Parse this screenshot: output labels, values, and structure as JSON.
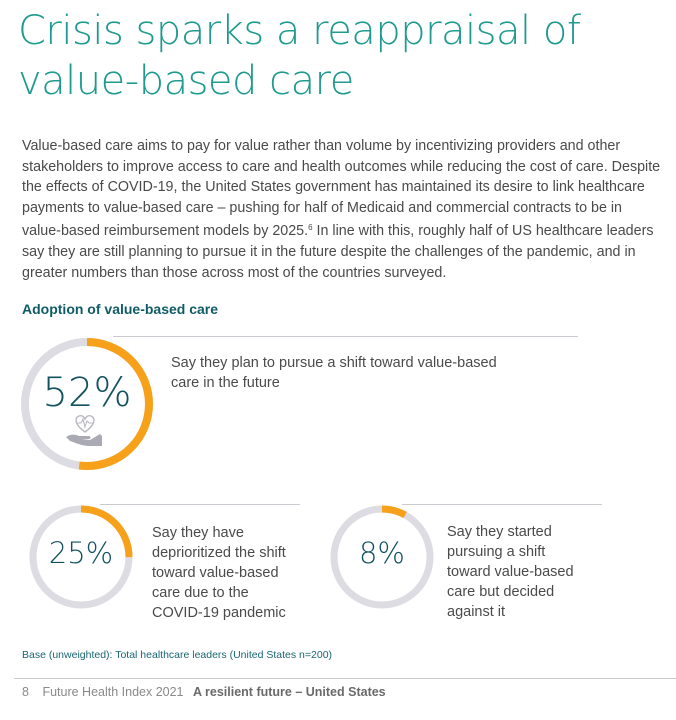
{
  "header": {
    "title_line1": "Crisis sparks a reappraisal of",
    "title_line2": "value-based care"
  },
  "intro": {
    "text_before_sup": "Value-based care aims to pay for value rather than volume by incentivizing providers and other stakeholders to improve access to care and health outcomes while reducing the cost of care. Despite the effects of COVID-19, the United States government has maintained its desire to link healthcare payments to value-based care – pushing for half of Medicaid and commercial contracts to be in value-based reimbursement models by 2025.",
    "footnote_ref": "6",
    "text_after_sup": " In line with this, roughly half of US healthcare leaders say they are still planning to pursue it in the future despite the challenges of the pandemic, and in greater numbers than those across most of the countries surveyed."
  },
  "section": {
    "title": "Adoption of value-based care"
  },
  "colors": {
    "accent": "#f7a11a",
    "track": "#dcdce2",
    "title_teal": "#1f9a8e",
    "number_teal": "#12525e"
  },
  "chart_data": {
    "type": "pie",
    "title": "Adoption of value-based care",
    "unit": "%",
    "series": [
      {
        "name": "plan-to-pursue",
        "label": "52%",
        "value": 52,
        "description": "Say they plan to pursue a shift toward value-based care in the future",
        "icon": "heart-in-hand-icon"
      },
      {
        "name": "deprioritized",
        "label": "25%",
        "value": 25,
        "description": "Say they have deprioritized the shift toward value-based care due to the COVID-19 pandemic"
      },
      {
        "name": "decided-against",
        "label": "8%",
        "value": 8,
        "description": "Say they started pursuing a shift toward value-based care but decided against it"
      }
    ],
    "base_note": "Base (unweighted): Total healthcare leaders (United States n=200)"
  },
  "stats": {
    "big": {
      "label": "52%",
      "text_line1": "Say they plan to pursue a shift toward value-based",
      "text_line2": "care in the future"
    },
    "left": {
      "label": "25%",
      "lines": [
        "Say they have",
        "deprioritized the shift",
        "toward value-based",
        "care due to the",
        "COVID-19 pandemic"
      ]
    },
    "right": {
      "label": "8%",
      "lines": [
        "Say they started",
        "pursuing a shift",
        "toward value-based",
        "care but decided",
        "against it"
      ]
    }
  },
  "footer": {
    "page_number": "8",
    "publication": "Future Health Index 2021",
    "report_title": "A resilient future – United States"
  }
}
